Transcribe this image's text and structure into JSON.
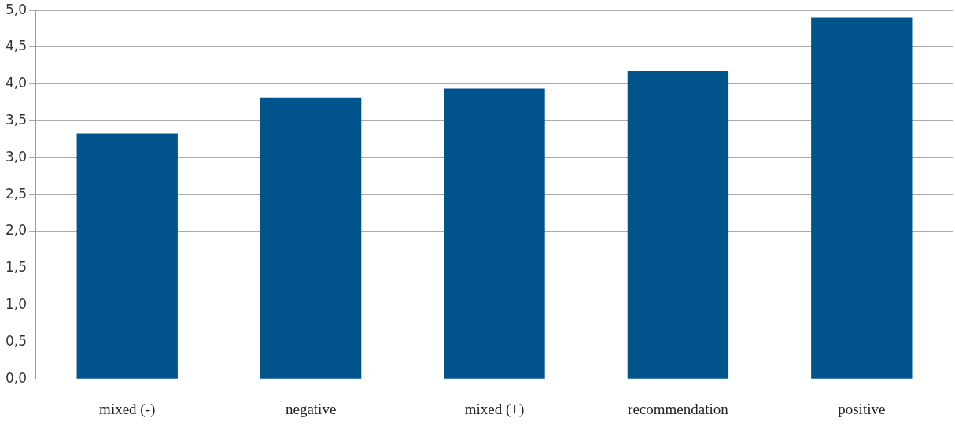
{
  "chart_data": {
    "type": "bar",
    "categories": [
      "mixed (-)",
      "negative",
      "mixed (+)",
      "recommendation",
      "positive"
    ],
    "values": [
      3.33,
      3.82,
      3.94,
      4.18,
      4.9
    ],
    "color": "#00548c",
    "ylim": [
      0,
      5
    ],
    "yticks": [
      {
        "value": 0,
        "label": "0,0"
      },
      {
        "value": 0.5,
        "label": "0,5"
      },
      {
        "value": 1,
        "label": "1,0"
      },
      {
        "value": 1.5,
        "label": "1,5"
      },
      {
        "value": 2,
        "label": "2,0"
      },
      {
        "value": 2.5,
        "label": "2,5"
      },
      {
        "value": 3,
        "label": "3,0"
      },
      {
        "value": 3.5,
        "label": "3,5"
      },
      {
        "value": 4,
        "label": "4,0"
      },
      {
        "value": 4.5,
        "label": "4,5"
      },
      {
        "value": 5,
        "label": "5,0"
      }
    ],
    "grid": "y",
    "legend": false
  }
}
